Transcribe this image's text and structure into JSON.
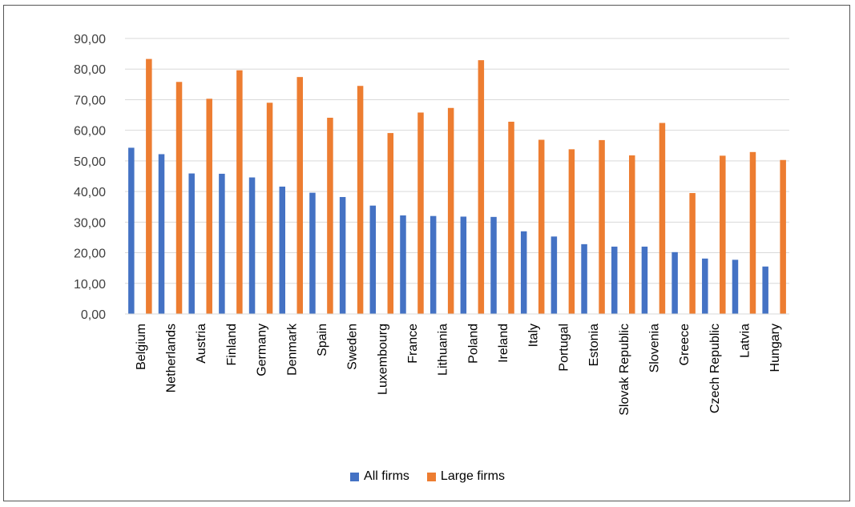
{
  "chart_data": {
    "type": "bar",
    "title": "",
    "xlabel": "",
    "ylabel": "",
    "ylim": [
      0,
      90
    ],
    "yticks": [
      "0,00",
      "10,00",
      "20,00",
      "30,00",
      "40,00",
      "50,00",
      "60,00",
      "70,00",
      "80,00",
      "90,00"
    ],
    "grid": true,
    "legend_position": "bottom",
    "categories": [
      "Belgium",
      "Netherlands",
      "Austria",
      "Finland",
      "Germany",
      "Denmark",
      "Spain",
      "Sweden",
      "Luxembourg",
      "France",
      "Lithuania",
      "Poland",
      "Ireland",
      "Italy",
      "Portugal",
      "Estonia",
      "Slovak Republic",
      "Slovenia",
      "Greece",
      "Czech Republic",
      "Latvia",
      "Hungary"
    ],
    "series": [
      {
        "name": "All firms",
        "color": "#4472C4",
        "values": [
          54.3,
          52.2,
          45.9,
          45.8,
          44.6,
          41.6,
          39.6,
          38.2,
          35.4,
          32.2,
          32.0,
          31.8,
          31.7,
          27.0,
          25.3,
          22.8,
          22.0,
          22.0,
          20.2,
          18.1,
          17.7,
          15.5
        ]
      },
      {
        "name": "Large firms",
        "color": "#ED7D31",
        "values": [
          83.3,
          75.8,
          70.3,
          79.6,
          69.0,
          77.4,
          64.1,
          74.5,
          59.1,
          65.8,
          67.3,
          82.9,
          62.8,
          56.9,
          53.8,
          56.8,
          51.8,
          62.4,
          39.5,
          51.7,
          52.9,
          50.3
        ]
      }
    ]
  }
}
